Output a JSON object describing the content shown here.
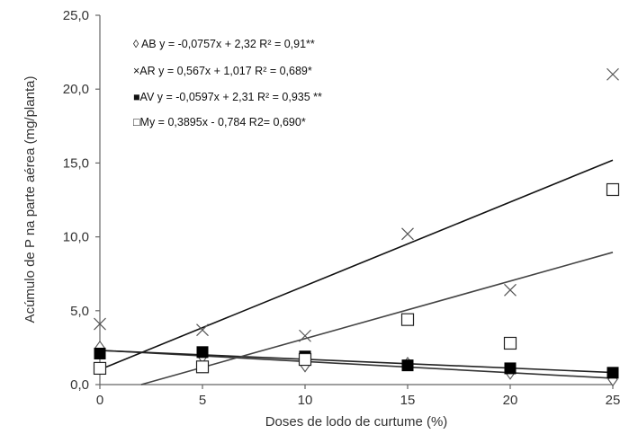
{
  "chart_data": {
    "type": "scatter",
    "xlabel": "Doses de lodo de curtume (%)",
    "ylabel": "Acúmulo de P na parte aérea (mg/planta)",
    "xlim": [
      0,
      25
    ],
    "ylim": [
      0,
      25
    ],
    "x_ticks": [
      "0",
      "5",
      "10",
      "15",
      "20",
      "25"
    ],
    "y_ticks": [
      "0,0",
      "5,0",
      "10,0",
      "15,0",
      "20,0",
      "25,0"
    ],
    "grid": false,
    "legend_position": "top-left",
    "series": [
      {
        "name": "AB",
        "marker": "diamond-open",
        "legend_text": "◊ AB y = -0,0757x + 2,32 R² = 0,91**",
        "x": [
          0,
          5,
          10,
          15,
          20,
          25
        ],
        "y": [
          2.5,
          1.9,
          1.3,
          1.4,
          0.8,
          0.35
        ],
        "trend": {
          "slope": -0.0757,
          "intercept": 2.32
        },
        "line_color": "#333333"
      },
      {
        "name": "AR",
        "marker": "cross",
        "legend_text": "×AR y = 0,567x + 1,017   R² = 0,689*",
        "x": [
          0,
          5,
          10,
          15,
          20,
          25
        ],
        "y": [
          4.1,
          3.7,
          3.3,
          10.2,
          6.4,
          21.0
        ],
        "trend": {
          "slope": 0.567,
          "intercept": 1.017
        },
        "line_color": "#111111"
      },
      {
        "name": "AV",
        "marker": "square-filled",
        "legend_text": "■AV y = -0,0597x + 2,31 R² = 0,935 **",
        "x": [
          0,
          5,
          10,
          15,
          20,
          25
        ],
        "y": [
          2.1,
          2.2,
          1.9,
          1.3,
          1.1,
          0.8
        ],
        "trend": {
          "slope": -0.0597,
          "intercept": 2.31
        },
        "line_color": "#222222"
      },
      {
        "name": "My",
        "marker": "square-open",
        "legend_text": "□My  = 0,3895x  - 0,784  R2= 0,690*",
        "x": [
          0,
          5,
          10,
          15,
          20,
          25
        ],
        "y": [
          1.1,
          1.2,
          1.7,
          4.4,
          2.8,
          13.2
        ],
        "trend": {
          "slope": 0.3895,
          "intercept": -0.784
        },
        "line_color": "#444444"
      }
    ]
  }
}
